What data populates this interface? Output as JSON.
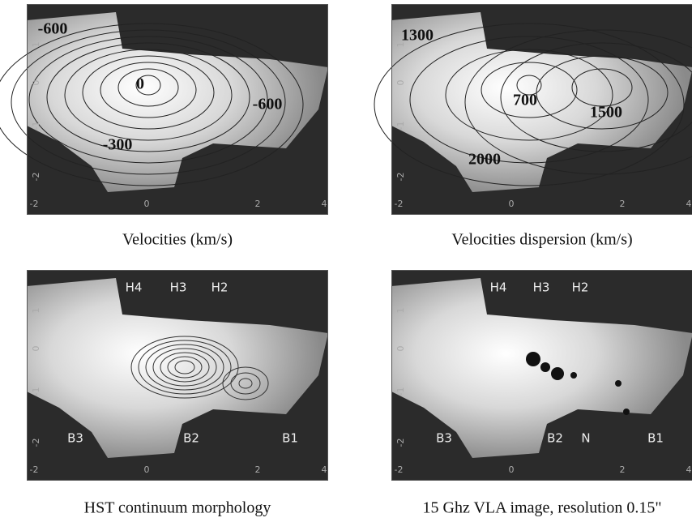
{
  "panels": [
    {
      "caption": "Velocities  (km/s)",
      "xticks": [
        "-2",
        "0",
        "2",
        "4"
      ],
      "yticks": [
        "1",
        "0",
        "-1",
        "-2"
      ],
      "labels": [
        "-600",
        "0",
        "-600",
        "-300"
      ]
    },
    {
      "caption": "Velocities dispersion  (km/s)",
      "xticks": [
        "-2",
        "0",
        "2",
        "4"
      ],
      "yticks": [
        "1",
        "0",
        "-1",
        "-2"
      ],
      "labels": [
        "1300",
        "700",
        "1500",
        "2000"
      ]
    },
    {
      "caption": "HST continuum morphology",
      "xticks": [
        "-2",
        "0",
        "2",
        "4"
      ],
      "yticks": [
        "1",
        "0",
        "-1",
        "-2"
      ],
      "labels": [
        "H4",
        "H3",
        "H2",
        "B3",
        "B2",
        "B1"
      ]
    },
    {
      "caption": "15 Ghz VLA image, resolution 0.15\"",
      "xticks": [
        "-2",
        "0",
        "2",
        "4"
      ],
      "yticks": [
        "1",
        "0",
        "-1",
        "-2"
      ],
      "labels": [
        "H4",
        "H3",
        "H2",
        "B3",
        "B2",
        "N",
        "B1"
      ]
    }
  ]
}
